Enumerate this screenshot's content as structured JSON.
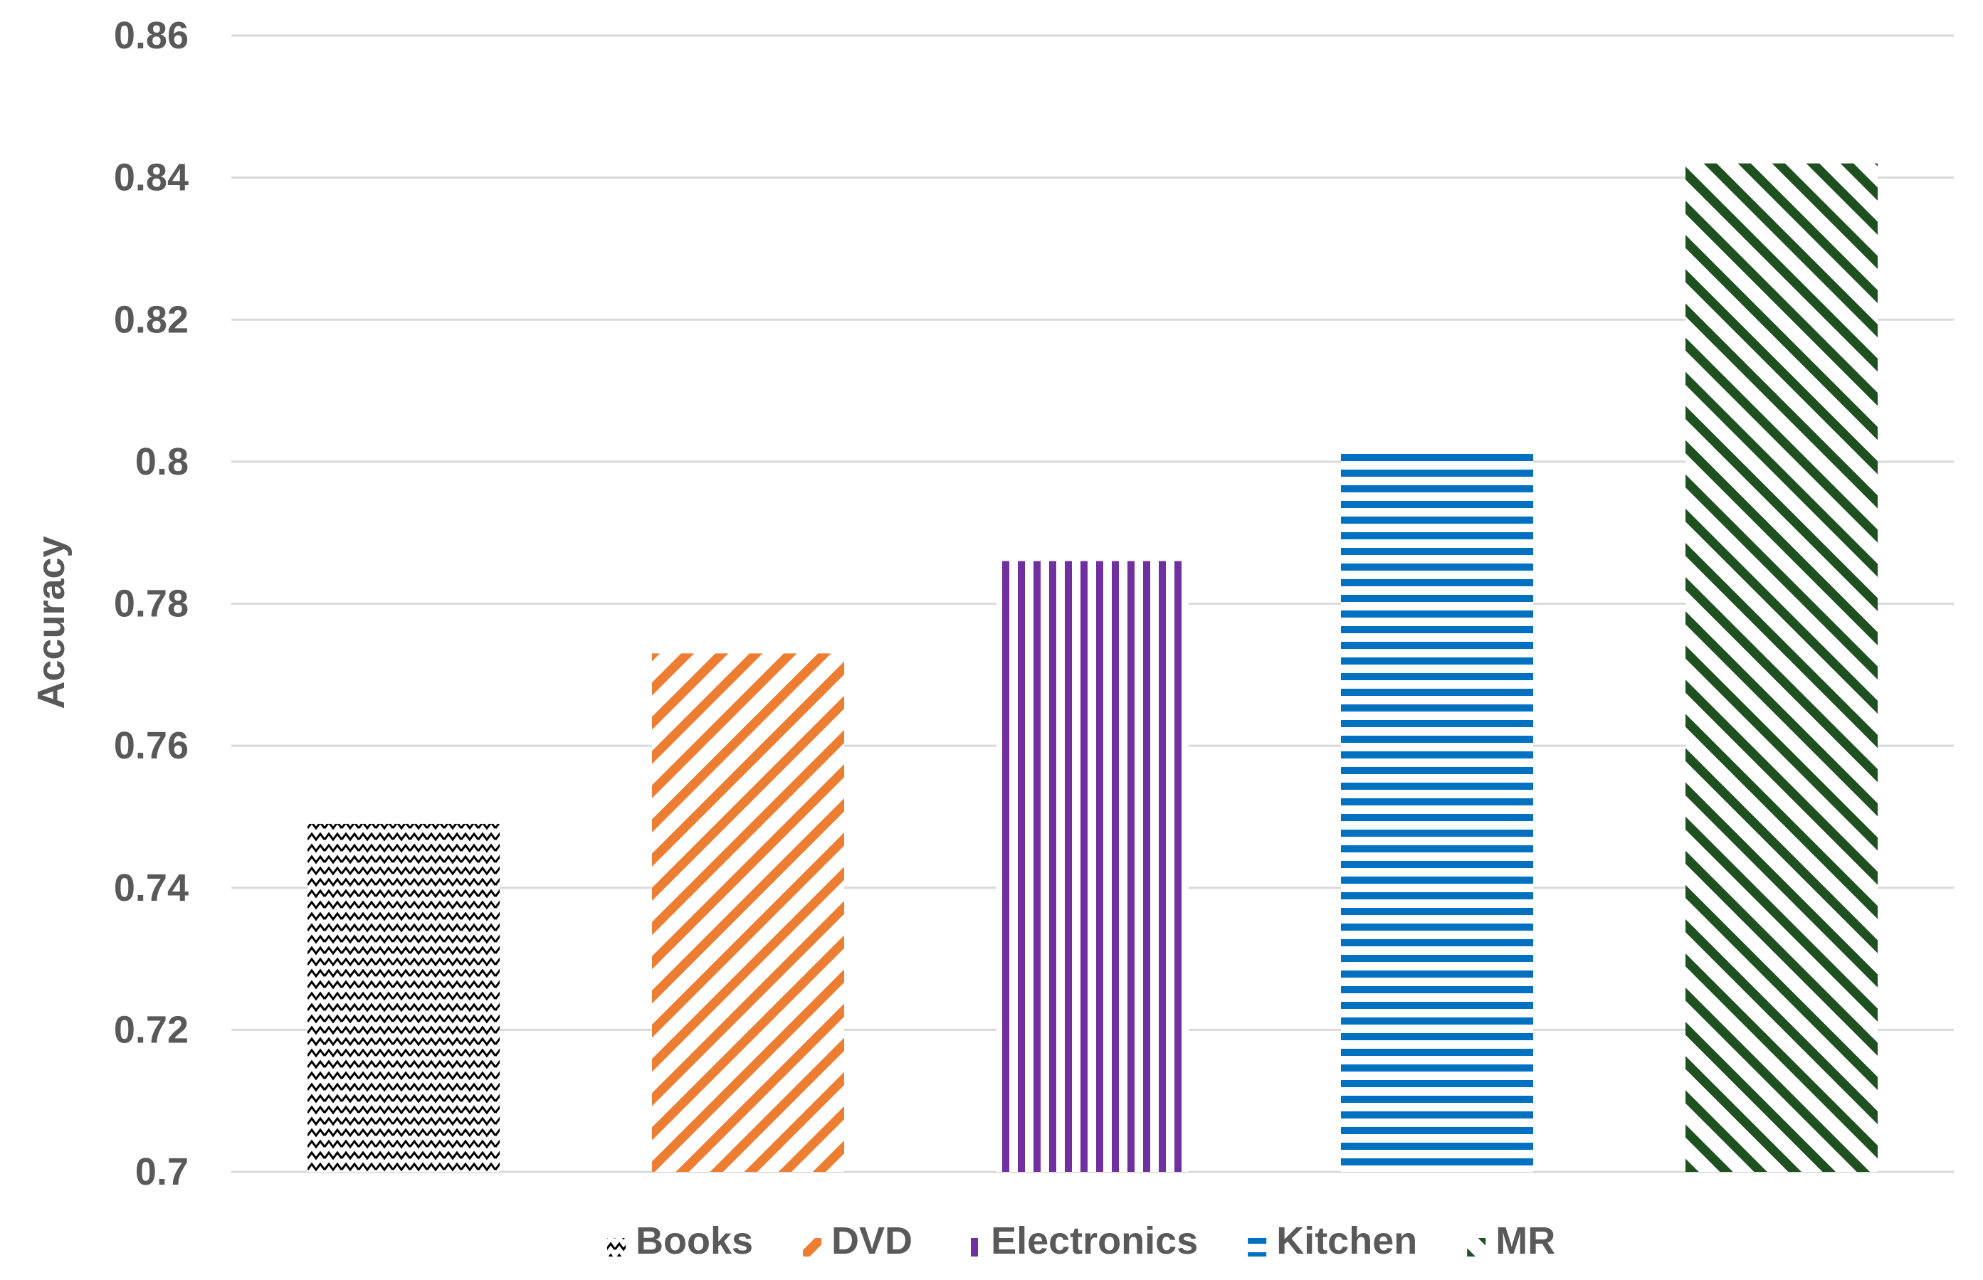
{
  "chart_data": {
    "type": "bar",
    "ylabel": "Accuracy",
    "ylim": [
      0.7,
      0.86
    ],
    "yticks": [
      "0.7",
      "0.72",
      "0.74",
      "0.76",
      "0.78",
      "0.8",
      "0.82",
      "0.84",
      "0.86"
    ],
    "grid": true,
    "legend_position": "bottom",
    "series": [
      {
        "name": "Books",
        "value": 0.749,
        "color": "#000000",
        "pattern": "wave"
      },
      {
        "name": "DVD",
        "value": 0.773,
        "color": "#ED7D31",
        "pattern": "diagonal-up"
      },
      {
        "name": "Electronics",
        "value": 0.786,
        "color": "#7030A0",
        "pattern": "vertical"
      },
      {
        "name": "Kitchen",
        "value": 0.802,
        "color": "#0070C0",
        "pattern": "horizontal"
      },
      {
        "name": "MR",
        "value": 0.842,
        "color": "#1E5020",
        "pattern": "diagonal-down"
      }
    ]
  }
}
